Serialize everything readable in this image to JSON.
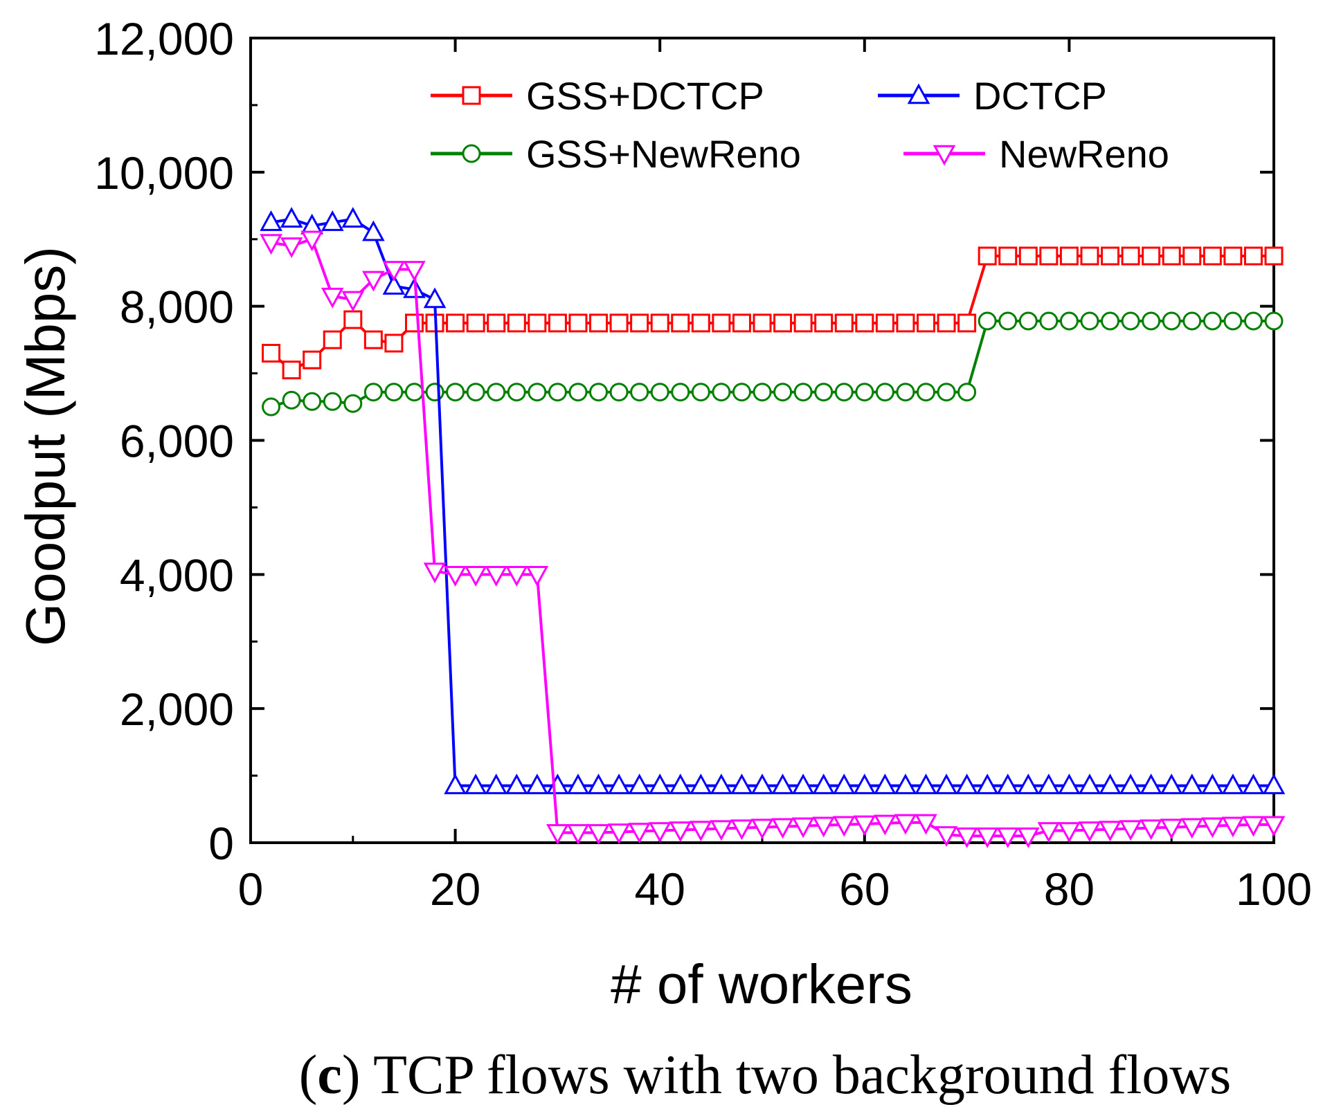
{
  "chart_data": {
    "type": "line",
    "title": "",
    "xlabel": "# of workers",
    "ylabel": "Goodput (Mbps)",
    "xlim": [
      0,
      100
    ],
    "ylim": [
      0,
      12000
    ],
    "xticks": [
      "0",
      "20",
      "40",
      "60",
      "80",
      "100"
    ],
    "yticks": [
      "0",
      "2,000",
      "4,000",
      "6,000",
      "8,000",
      "10,000",
      "12,000"
    ],
    "legend_position": "top",
    "caption": {
      "open": "(",
      "letter": "c",
      "close": ")",
      "text": " TCP flows with two background flows"
    },
    "series": [
      {
        "name": "GSS+DCTCP",
        "color": "#ff0000",
        "marker": "square",
        "x": [
          2,
          4,
          6,
          8,
          10,
          12,
          14,
          16,
          18,
          20,
          22,
          24,
          26,
          28,
          30,
          32,
          34,
          36,
          38,
          40,
          42,
          44,
          46,
          48,
          50,
          52,
          54,
          56,
          58,
          60,
          62,
          64,
          66,
          68,
          70,
          72,
          74,
          76,
          78,
          80,
          82,
          84,
          86,
          88,
          90,
          92,
          94,
          96,
          98,
          100
        ],
        "y": [
          7300,
          7050,
          7200,
          7500,
          7800,
          7500,
          7450,
          7750,
          7750,
          7750,
          7750,
          7750,
          7750,
          7750,
          7750,
          7750,
          7750,
          7750,
          7750,
          7750,
          7750,
          7750,
          7750,
          7750,
          7750,
          7750,
          7750,
          7750,
          7750,
          7750,
          7750,
          7750,
          7750,
          7750,
          7750,
          8750,
          8750,
          8750,
          8750,
          8750,
          8750,
          8750,
          8750,
          8750,
          8750,
          8750,
          8750,
          8750,
          8750,
          8750
        ]
      },
      {
        "name": "GSS+NewReno",
        "color": "#008000",
        "marker": "circle",
        "x": [
          2,
          4,
          6,
          8,
          10,
          12,
          14,
          16,
          18,
          20,
          22,
          24,
          26,
          28,
          30,
          32,
          34,
          36,
          38,
          40,
          42,
          44,
          46,
          48,
          50,
          52,
          54,
          56,
          58,
          60,
          62,
          64,
          66,
          68,
          70,
          72,
          74,
          76,
          78,
          80,
          82,
          84,
          86,
          88,
          90,
          92,
          94,
          96,
          98,
          100
        ],
        "y": [
          6500,
          6600,
          6580,
          6580,
          6550,
          6720,
          6720,
          6720,
          6720,
          6720,
          6720,
          6720,
          6720,
          6720,
          6720,
          6720,
          6720,
          6720,
          6720,
          6720,
          6720,
          6720,
          6720,
          6720,
          6720,
          6720,
          6720,
          6720,
          6720,
          6720,
          6720,
          6720,
          6720,
          6720,
          6720,
          7780,
          7780,
          7780,
          7780,
          7780,
          7780,
          7780,
          7780,
          7780,
          7780,
          7780,
          7780,
          7780,
          7780,
          7780
        ]
      },
      {
        "name": "DCTCP",
        "color": "#0000ff",
        "marker": "triangle-up",
        "x": [
          2,
          4,
          6,
          8,
          10,
          12,
          14,
          16,
          18,
          20,
          22,
          24,
          26,
          28,
          30,
          32,
          34,
          36,
          38,
          40,
          42,
          44,
          46,
          48,
          50,
          52,
          54,
          56,
          58,
          60,
          62,
          64,
          66,
          68,
          70,
          72,
          74,
          76,
          78,
          80,
          82,
          84,
          86,
          88,
          90,
          92,
          94,
          96,
          98,
          100
        ],
        "y": [
          9250,
          9300,
          9200,
          9250,
          9300,
          9100,
          8300,
          8250,
          8100,
          850,
          850,
          850,
          850,
          850,
          850,
          850,
          850,
          850,
          850,
          850,
          850,
          850,
          850,
          850,
          850,
          850,
          850,
          850,
          850,
          850,
          850,
          850,
          850,
          850,
          850,
          850,
          850,
          850,
          850,
          850,
          850,
          850,
          850,
          850,
          850,
          850,
          850,
          850,
          850,
          850
        ]
      },
      {
        "name": "NewReno",
        "color": "#ff00ff",
        "marker": "triangle-down",
        "x": [
          2,
          4,
          6,
          8,
          10,
          12,
          14,
          16,
          18,
          20,
          22,
          24,
          26,
          28,
          30,
          32,
          34,
          36,
          38,
          40,
          42,
          44,
          46,
          48,
          50,
          52,
          54,
          56,
          58,
          60,
          62,
          64,
          66,
          68,
          70,
          72,
          74,
          76,
          78,
          80,
          82,
          84,
          86,
          88,
          90,
          92,
          94,
          96,
          98,
          100
        ],
        "y": [
          8950,
          8900,
          9000,
          8150,
          8100,
          8400,
          8550,
          8550,
          4050,
          4000,
          4000,
          4000,
          4000,
          4000,
          150,
          150,
          150,
          160,
          170,
          180,
          190,
          200,
          210,
          220,
          230,
          240,
          250,
          260,
          270,
          280,
          290,
          300,
          300,
          120,
          100,
          100,
          100,
          100,
          180,
          180,
          190,
          200,
          210,
          220,
          230,
          240,
          250,
          260,
          270,
          270
        ]
      }
    ]
  }
}
